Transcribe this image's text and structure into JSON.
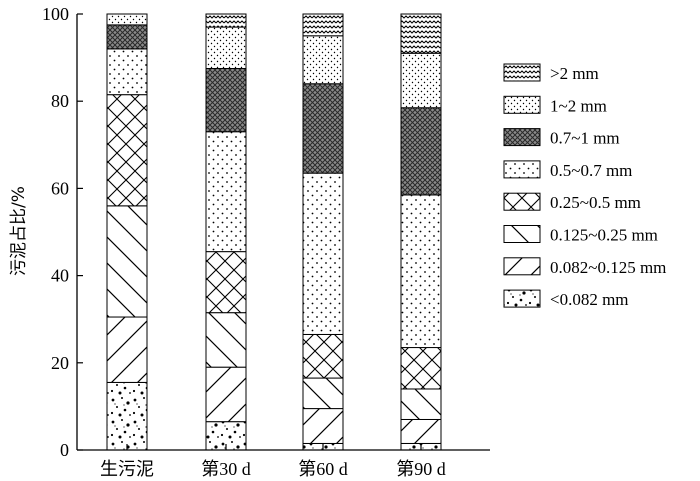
{
  "chart_data": {
    "type": "bar",
    "stacked": true,
    "title": "",
    "xlabel": "",
    "ylabel": "污泥占比/%",
    "ylim": [
      0,
      100
    ],
    "yticks": [
      0,
      20,
      40,
      60,
      80,
      100
    ],
    "grid": false,
    "legend_position": "right",
    "categories": [
      "生污泥",
      "第30 d",
      "第60 d",
      "第90 d"
    ],
    "series": [
      {
        "name": "<0.082 mm",
        "pattern": "stipple",
        "values": [
          15.5,
          6.5,
          1.5,
          1.5
        ]
      },
      {
        "name": "0.082~0.125 mm",
        "pattern": "forward-diagonal",
        "values": [
          15.0,
          12.5,
          8.0,
          5.5
        ]
      },
      {
        "name": "0.125~0.25 mm",
        "pattern": "back-diagonal",
        "values": [
          25.5,
          12.5,
          7.0,
          7.0
        ]
      },
      {
        "name": "0.25~0.5 mm",
        "pattern": "crosshatch",
        "values": [
          25.5,
          14.0,
          10.0,
          9.5
        ]
      },
      {
        "name": "0.5~0.7 mm",
        "pattern": "sparse-dots",
        "values": [
          10.5,
          27.5,
          37.0,
          35.0
        ]
      },
      {
        "name": "0.7~1 mm",
        "pattern": "dense-crosshatch",
        "values": [
          5.5,
          14.5,
          20.5,
          20.0
        ]
      },
      {
        "name": "1~2 mm",
        "pattern": "fine-dots",
        "values": [
          2.5,
          9.5,
          11.0,
          12.5
        ]
      },
      {
        "name": ">2 mm",
        "pattern": "waves",
        "values": [
          0.0,
          3.0,
          5.0,
          9.0
        ]
      }
    ],
    "legend_order": [
      ">2 mm",
      "1~2 mm",
      "0.7~1 mm",
      "0.5~0.7 mm",
      "0.25~0.5 mm",
      "0.125~0.25 mm",
      "0.082~0.125 mm",
      "<0.082 mm"
    ]
  }
}
